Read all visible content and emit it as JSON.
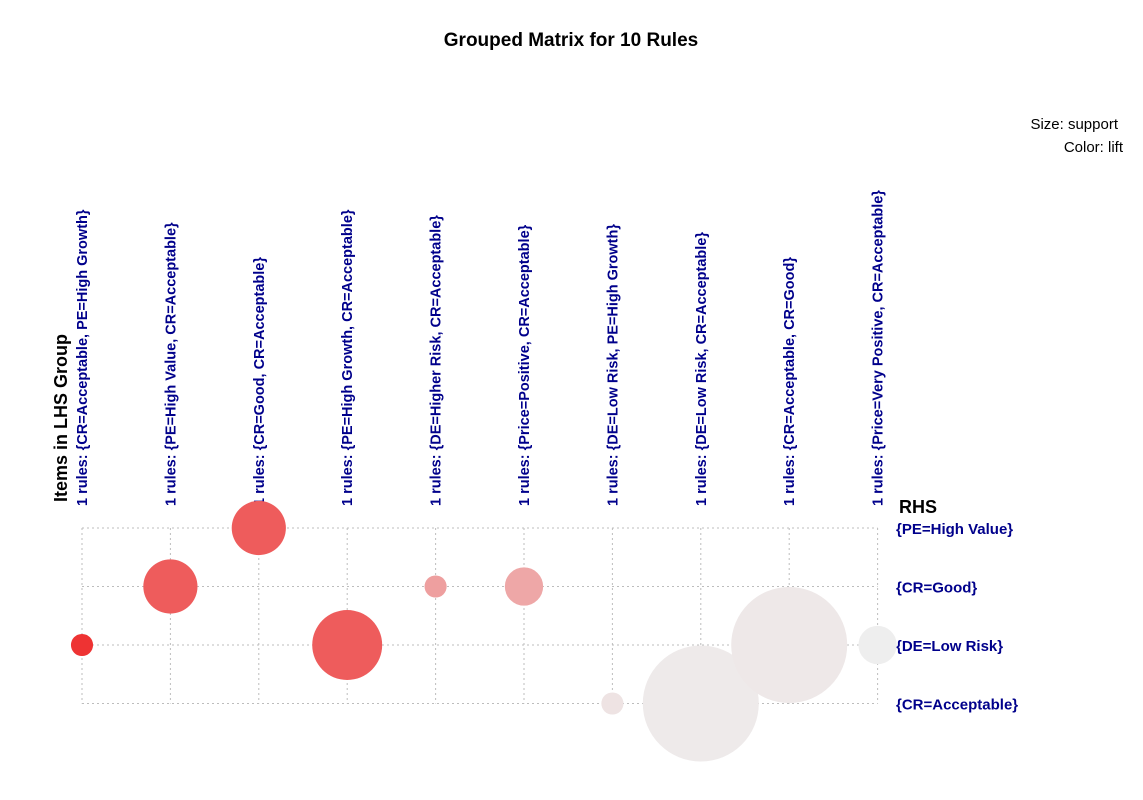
{
  "chart_data": {
    "type": "grouped-matrix",
    "title": "Grouped Matrix for 10 Rules",
    "legend": {
      "size": "Size: support",
      "color": "Color: lift",
      "placement": "top-right"
    },
    "x_axis_title": "Items in LHS Group",
    "y_axis_title": "RHS",
    "lhs_groups": [
      "1 rules: {CR=Acceptable, PE=High Growth}",
      "1 rules: {PE=High Value, CR=Acceptable}",
      "1 rules: {CR=Good, CR=Acceptable}",
      "1 rules: {PE=High Growth, CR=Acceptable}",
      "1 rules: {DE=Higher Risk, CR=Acceptable}",
      "1 rules: {Price=Positive, CR=Acceptable}",
      "1 rules: {DE=Low Risk, PE=High Growth}",
      "1 rules: {DE=Low Risk, CR=Acceptable}",
      "1 rules: {CR=Acceptable, CR=Good}",
      "1 rules: {Price=Very Positive, CR=Acceptable}"
    ],
    "rhs_items": [
      "{PE=High Value}",
      "{CR=Good}",
      "{DE=Low Risk}",
      "{CR=Acceptable}"
    ],
    "rules": [
      {
        "lhs": 0,
        "rhs": 2,
        "support": 0.02,
        "lift": 1.0
      },
      {
        "lhs": 1,
        "rhs": 1,
        "support": 0.12,
        "lift": 0.78
      },
      {
        "lhs": 2,
        "rhs": 0,
        "support": 0.12,
        "lift": 0.78
      },
      {
        "lhs": 3,
        "rhs": 2,
        "support": 0.2,
        "lift": 0.78
      },
      {
        "lhs": 4,
        "rhs": 1,
        "support": 0.02,
        "lift": 0.42
      },
      {
        "lhs": 5,
        "rhs": 1,
        "support": 0.06,
        "lift": 0.38
      },
      {
        "lhs": 6,
        "rhs": 3,
        "support": 0.02,
        "lift": 0.06
      },
      {
        "lhs": 7,
        "rhs": 3,
        "support": 0.55,
        "lift": 0.02
      },
      {
        "lhs": 8,
        "rhs": 2,
        "support": 0.55,
        "lift": 0.03
      },
      {
        "lhs": 9,
        "rhs": 2,
        "support": 0.06,
        "lift": 0.0
      }
    ],
    "color_scale": {
      "low": "#eeeeee",
      "high": "#ee3333"
    },
    "grid": true
  }
}
